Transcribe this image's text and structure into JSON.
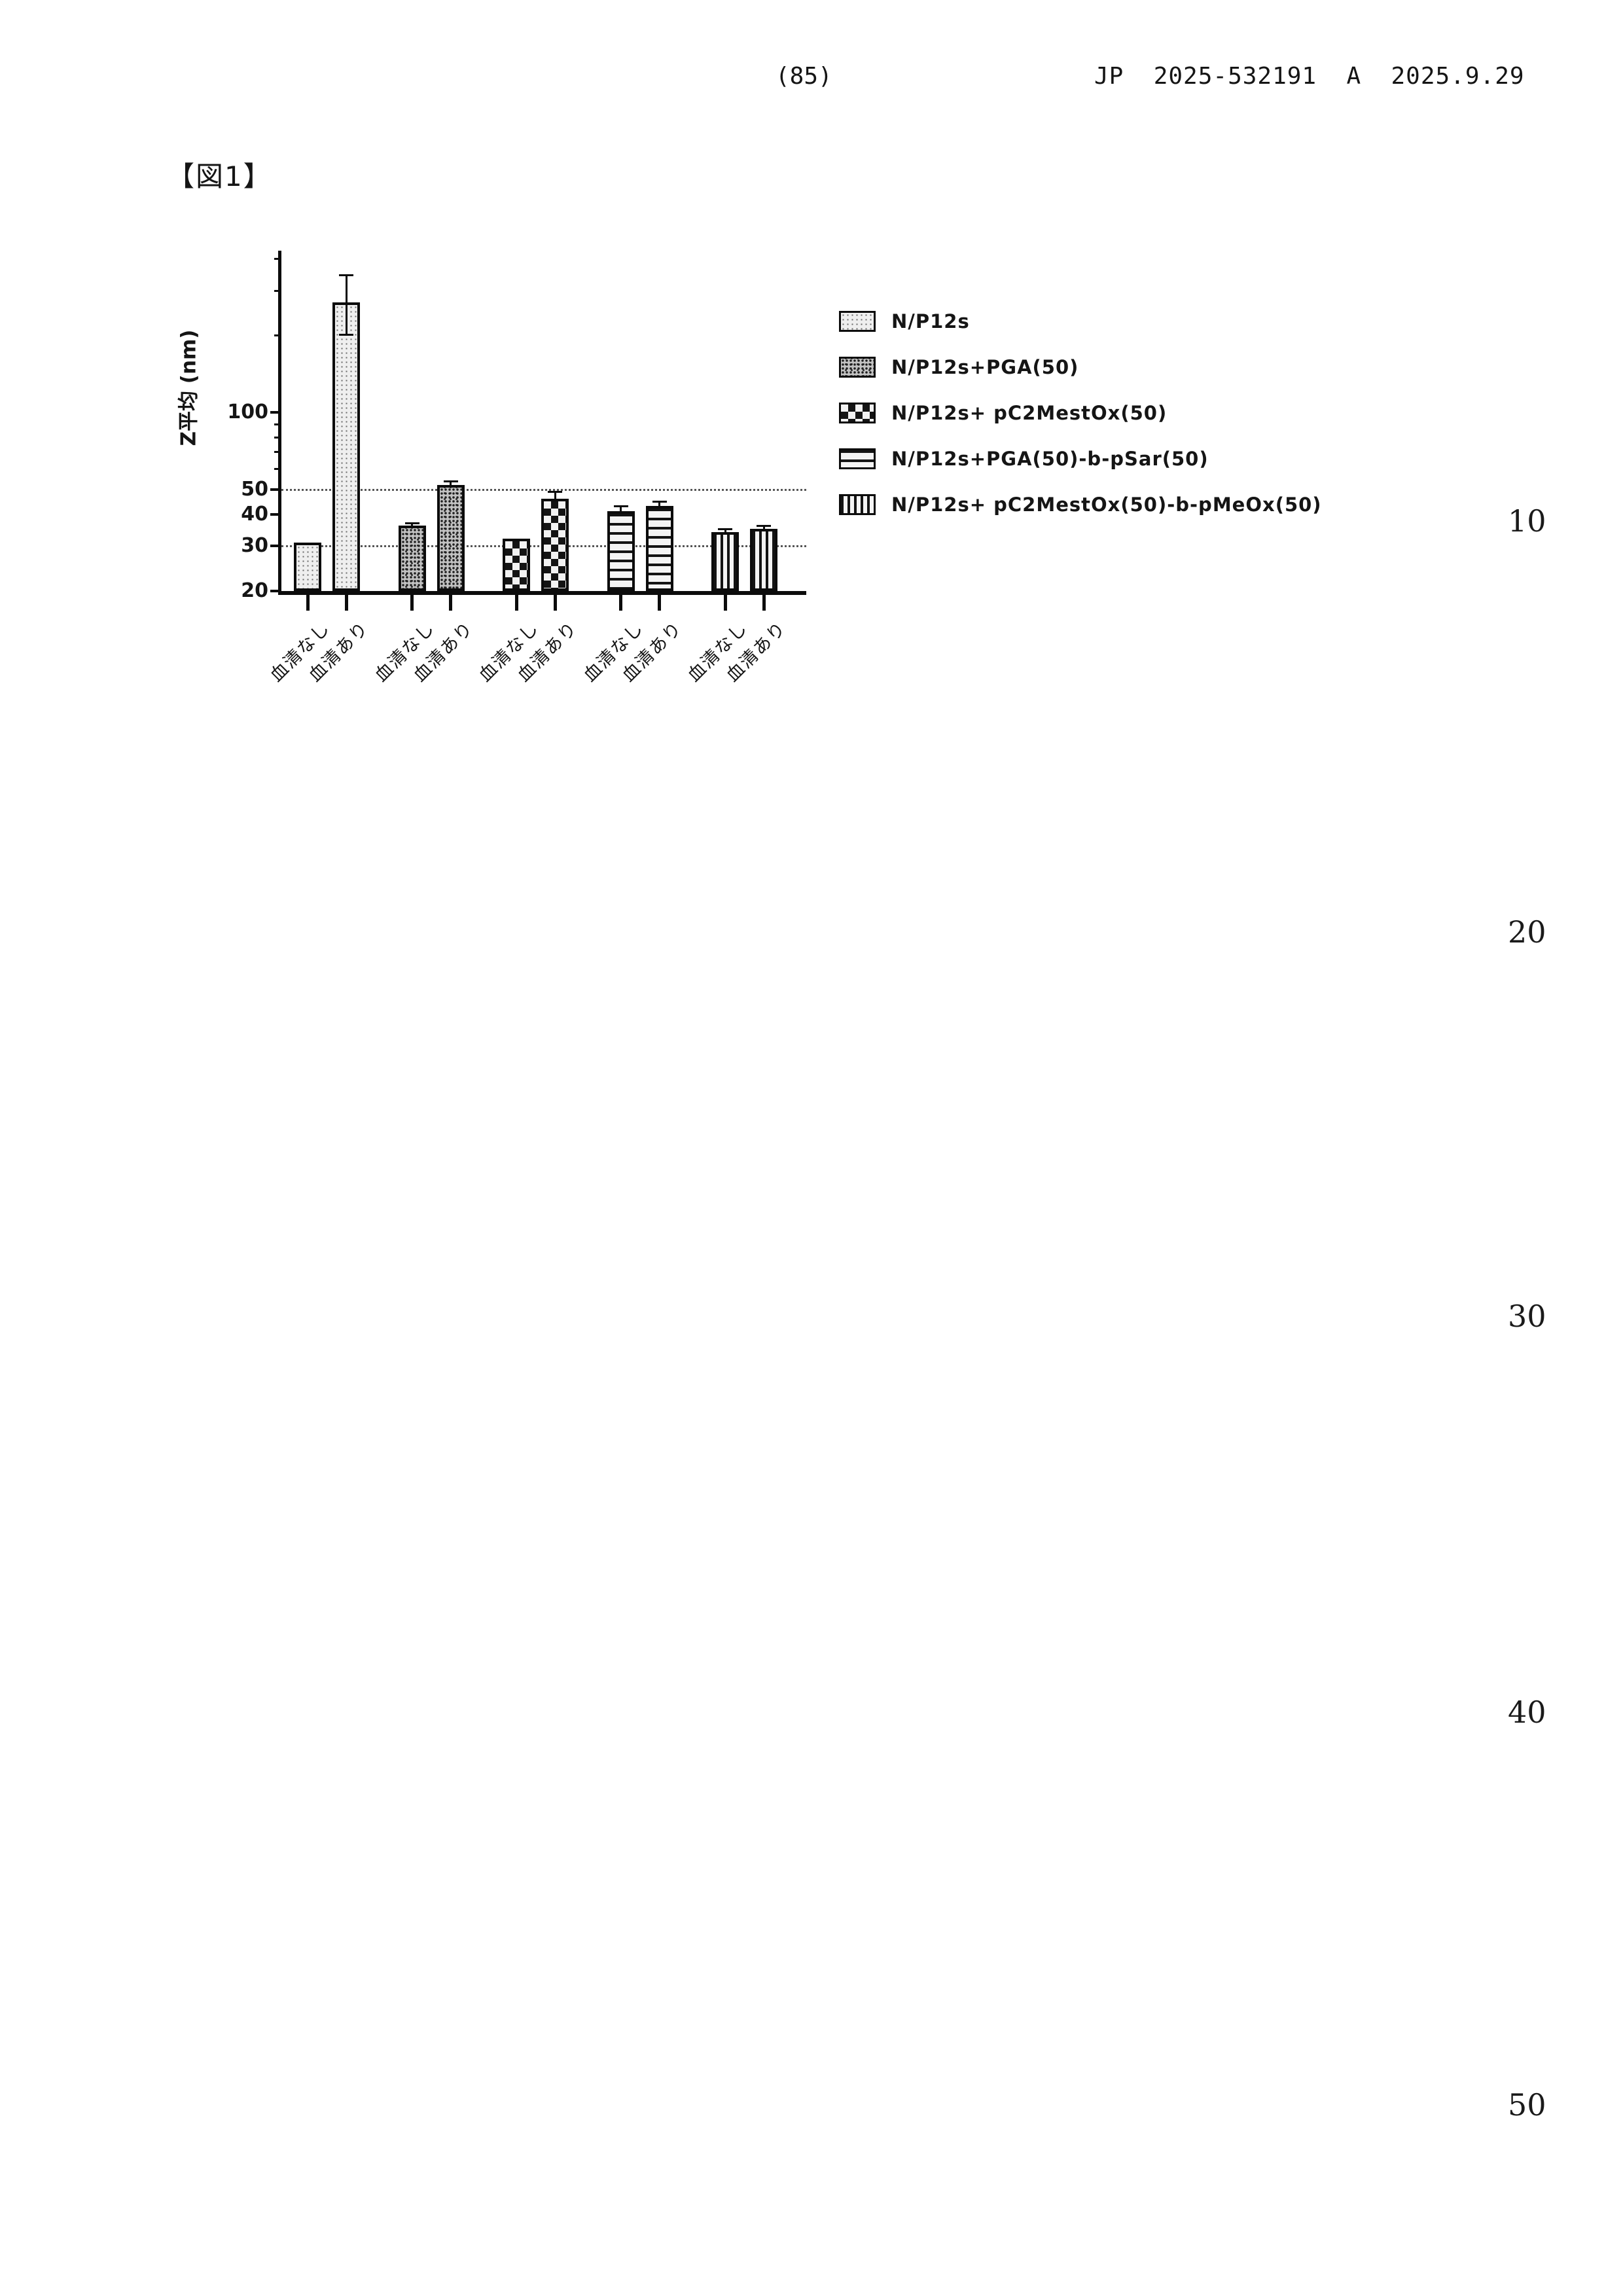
{
  "page": {
    "page_number": "(85)",
    "publication": "JP  2025-532191  A  2025.9.29",
    "figure_label": "【図1】",
    "margin_line_numbers": [
      "10",
      "20",
      "30",
      "40",
      "50"
    ]
  },
  "chart_data": {
    "type": "bar",
    "title": "図1",
    "ylabel": "Z平均 (nm)",
    "xlabel": "",
    "yscale": "log",
    "ylim": [
      20,
      430
    ],
    "yticks_major": [
      20,
      30,
      40,
      50,
      100
    ],
    "yticks_minor": [
      60,
      70,
      80,
      90,
      200,
      300,
      400
    ],
    "reference_lines": [
      30,
      50
    ],
    "grid": "dotted-horizontal-at-30-and-50",
    "legend_position": "right",
    "categories_per_group": [
      "血清なし",
      "血清あり"
    ],
    "series": [
      {
        "name": "N/P12s",
        "pattern": "light-stipple"
      },
      {
        "name": "N/P12s+PGA(50)",
        "pattern": "dense-stipple"
      },
      {
        "name": "N/P12s+ pC2MestOx(50)",
        "pattern": "checker"
      },
      {
        "name": "N/P12s+PGA(50)-b-pSar(50)",
        "pattern": "hlines"
      },
      {
        "name": "N/P12s+ pC2MestOx(50)-b-pMeOx(50)",
        "pattern": "vlines"
      }
    ],
    "bars": [
      {
        "series": 0,
        "category": "血清なし",
        "value": 31,
        "err_plus": 0,
        "err_minus": 0
      },
      {
        "series": 0,
        "category": "血清あり",
        "value": 270,
        "err_plus": 75,
        "err_minus": 68
      },
      {
        "series": 1,
        "category": "血清なし",
        "value": 36,
        "err_plus": 1,
        "err_minus": 0
      },
      {
        "series": 1,
        "category": "血清あり",
        "value": 52,
        "err_plus": 2,
        "err_minus": 0
      },
      {
        "series": 2,
        "category": "血清なし",
        "value": 32,
        "err_plus": 0,
        "err_minus": 0
      },
      {
        "series": 2,
        "category": "血清あり",
        "value": 46,
        "err_plus": 3,
        "err_minus": 0
      },
      {
        "series": 3,
        "category": "血清なし",
        "value": 41,
        "err_plus": 2,
        "err_minus": 0
      },
      {
        "series": 3,
        "category": "血清あり",
        "value": 43,
        "err_plus": 2,
        "err_minus": 0
      },
      {
        "series": 4,
        "category": "血清なし",
        "value": 34,
        "err_plus": 1,
        "err_minus": 0
      },
      {
        "series": 4,
        "category": "血清あり",
        "value": 35,
        "err_plus": 1,
        "err_minus": 0
      }
    ]
  }
}
